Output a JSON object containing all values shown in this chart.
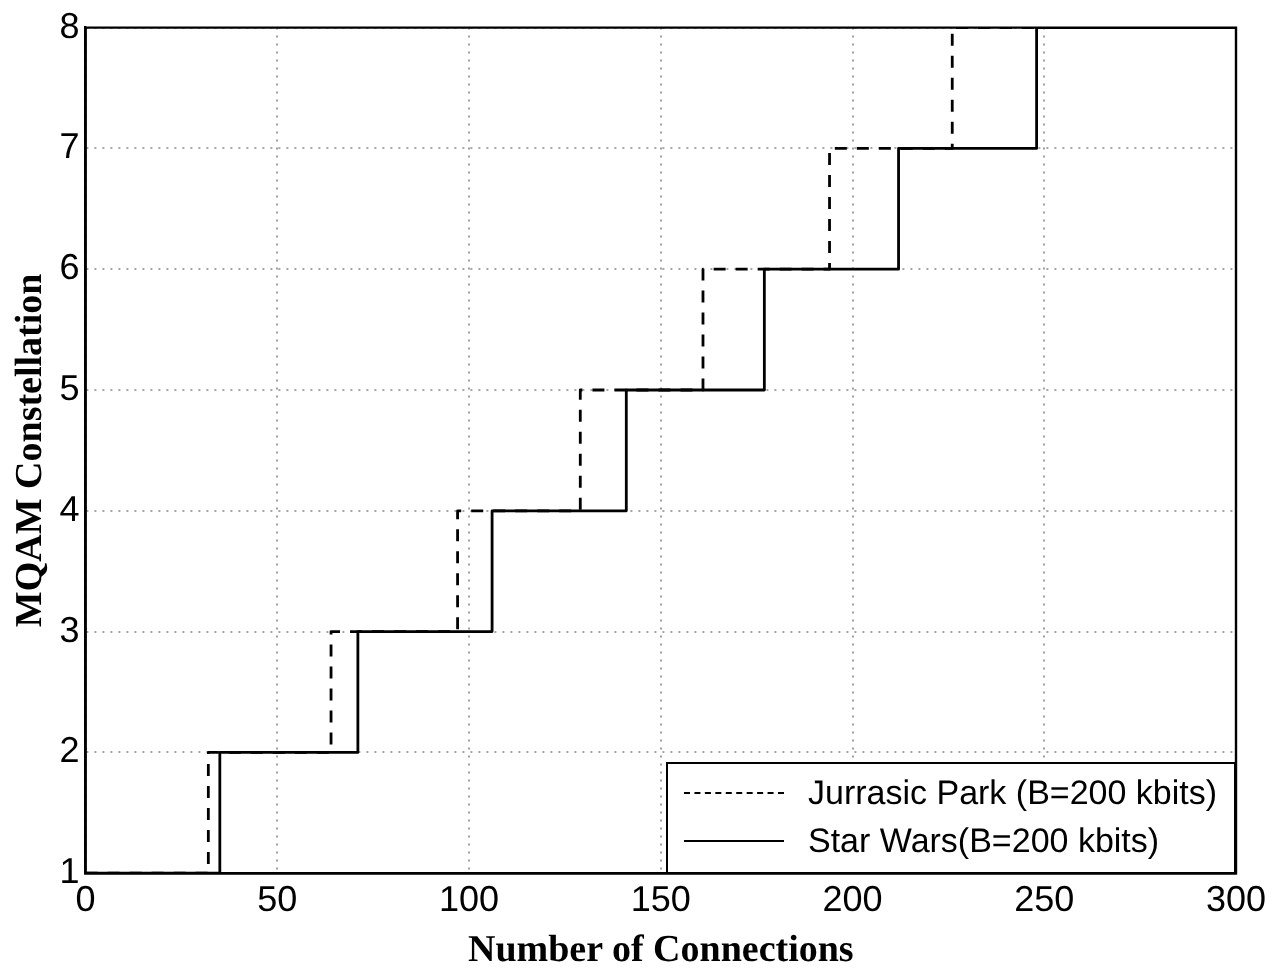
{
  "chart_data": {
    "type": "step",
    "xlabel": "Number of Connections",
    "ylabel": "MQAM Constellation",
    "xlim": [
      0,
      300
    ],
    "xticks": [
      0,
      50,
      100,
      150,
      200,
      250,
      300
    ],
    "ylim": [
      1,
      8
    ],
    "yticks": [
      1,
      2,
      3,
      4,
      5,
      6,
      7,
      8
    ],
    "grid": true,
    "legend": "bottom right",
    "series": [
      {
        "name": "Jurrasic Park (B=200 kbits)",
        "color": "#000000",
        "line_style": "dashed",
        "x": [
          0,
          32,
          64,
          97,
          129,
          161,
          194,
          226,
          300
        ],
        "values": [
          1,
          2,
          3,
          4,
          5,
          6,
          7,
          8,
          8
        ]
      },
      {
        "name": "Star Wars(B=200 kbits)",
        "color": "#000000",
        "line_style": "solid",
        "x": [
          0,
          35,
          71,
          106,
          141,
          177,
          212,
          248,
          300
        ],
        "values": [
          1,
          2,
          3,
          4,
          5,
          6,
          7,
          8,
          8
        ]
      }
    ]
  }
}
